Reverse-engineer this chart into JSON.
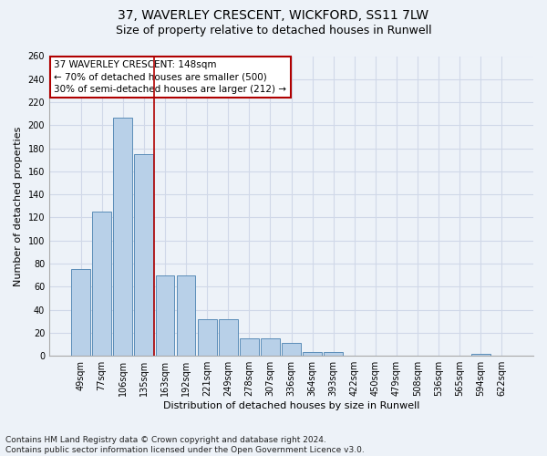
{
  "title_line1": "37, WAVERLEY CRESCENT, WICKFORD, SS11 7LW",
  "title_line2": "Size of property relative to detached houses in Runwell",
  "xlabel": "Distribution of detached houses by size in Runwell",
  "ylabel": "Number of detached properties",
  "categories": [
    "49sqm",
    "77sqm",
    "106sqm",
    "135sqm",
    "163sqm",
    "192sqm",
    "221sqm",
    "249sqm",
    "278sqm",
    "307sqm",
    "336sqm",
    "364sqm",
    "393sqm",
    "422sqm",
    "450sqm",
    "479sqm",
    "508sqm",
    "536sqm",
    "565sqm",
    "594sqm",
    "622sqm"
  ],
  "values": [
    75,
    125,
    207,
    175,
    70,
    70,
    32,
    32,
    15,
    15,
    11,
    3,
    3,
    0,
    0,
    0,
    0,
    0,
    0,
    2,
    0
  ],
  "bar_color": "#b8d0e8",
  "bar_edge_color": "#5b8db8",
  "vline_x": 3.5,
  "vline_color": "#b00000",
  "annotation_text": "37 WAVERLEY CRESCENT: 148sqm\n← 70% of detached houses are smaller (500)\n30% of semi-detached houses are larger (212) →",
  "annotation_box_facecolor": "#ffffff",
  "annotation_box_edgecolor": "#b00000",
  "ylim_max": 260,
  "yticks": [
    0,
    20,
    40,
    60,
    80,
    100,
    120,
    140,
    160,
    180,
    200,
    220,
    240,
    260
  ],
  "footnote": "Contains HM Land Registry data © Crown copyright and database right 2024.\nContains public sector information licensed under the Open Government Licence v3.0.",
  "bg_color": "#edf2f8",
  "grid_color": "#d0d8e8",
  "title_fontsize": 10,
  "subtitle_fontsize": 9,
  "xlabel_fontsize": 8,
  "ylabel_fontsize": 8,
  "tick_fontsize": 7,
  "annotation_fontsize": 7.5,
  "footnote_fontsize": 6.5
}
